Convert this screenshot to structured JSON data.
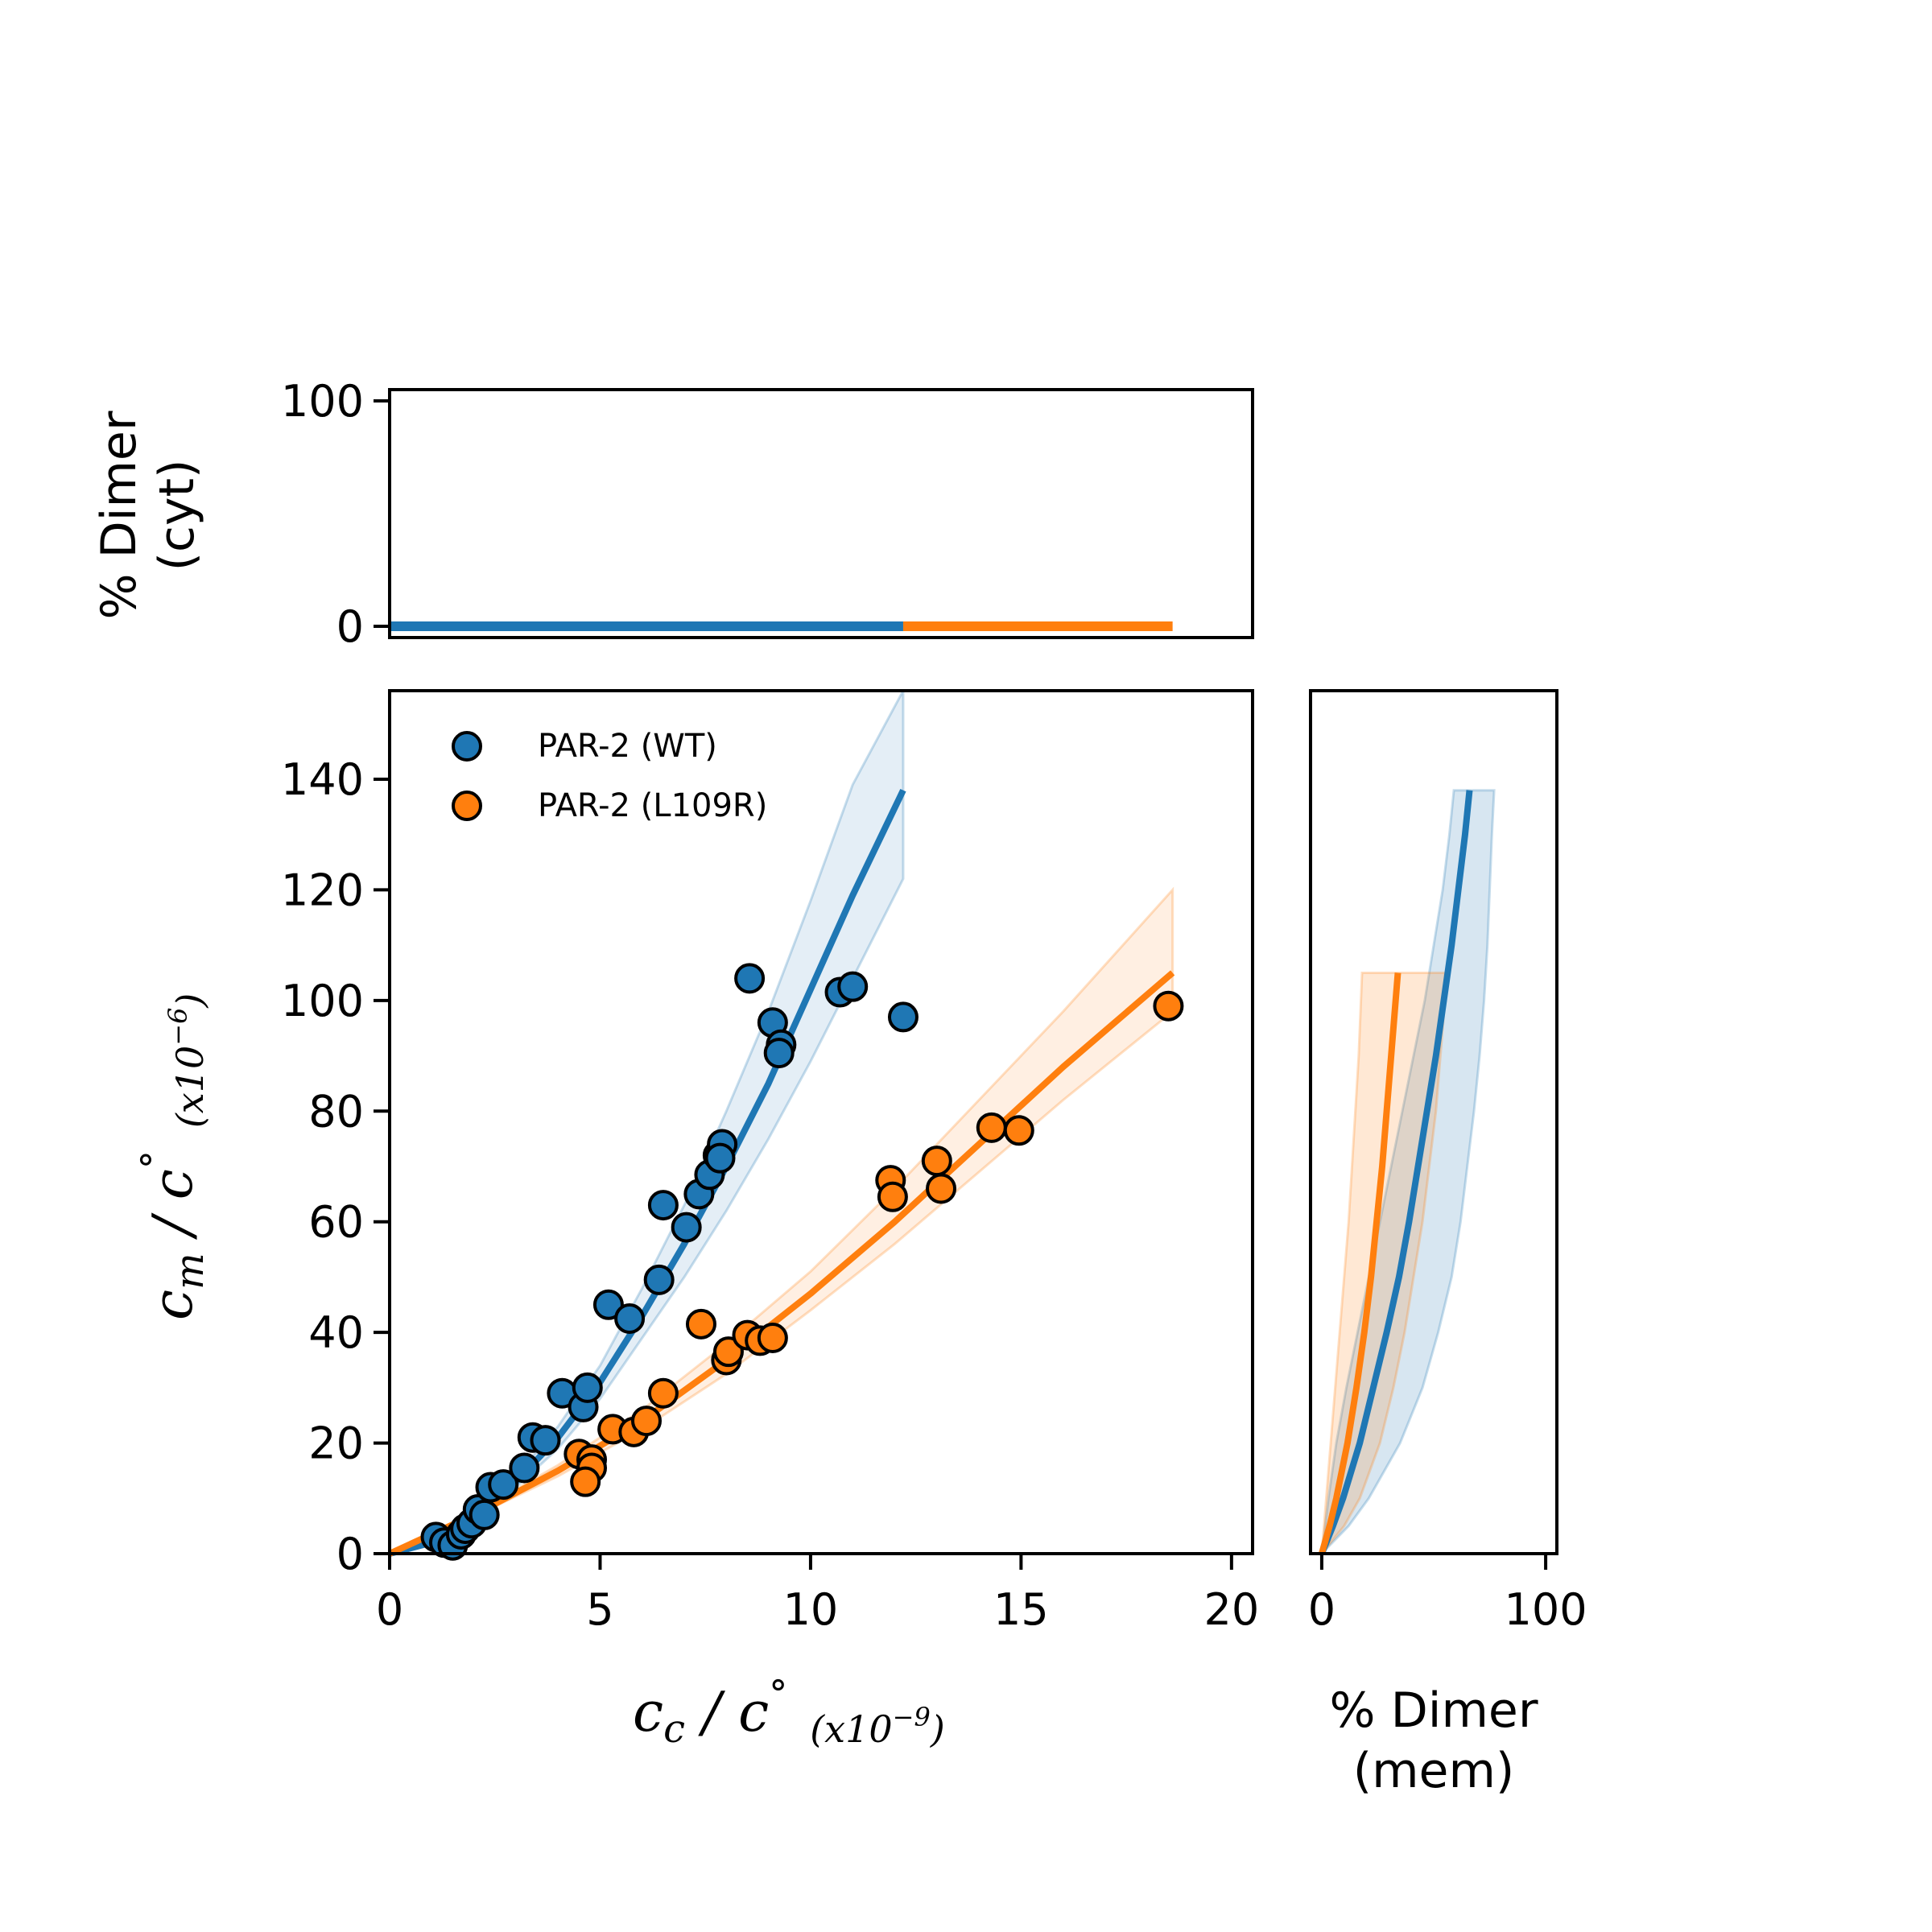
{
  "colors": {
    "wt": "#1f77b4",
    "mut": "#ff7f0e"
  },
  "chart_data": [
    {
      "panel": "top",
      "type": "line",
      "ylabel_line1": "% Dimer",
      "ylabel_line2": "(cyt)",
      "xlim": [
        0,
        20.5
      ],
      "ylim": [
        -5,
        105
      ],
      "yticks": [
        0,
        100
      ],
      "series": [
        {
          "key": "wt",
          "x": [
            0,
            12.2
          ],
          "y": [
            0,
            0
          ]
        },
        {
          "key": "mut",
          "x": [
            12.2,
            18.6
          ],
          "y": [
            0,
            0
          ]
        }
      ]
    },
    {
      "panel": "main",
      "type": "scatter",
      "xlabel_main": "c",
      "xlabel_sub": "c",
      "xlabel_mid": " / c",
      "xlabel_sup": "°",
      "xlabel_scale": "(x10",
      "xlabel_exp": "−9",
      "xlabel_close": ")",
      "ylabel_main": "c",
      "ylabel_sub": "m",
      "ylabel_mid": " / c",
      "ylabel_sup": "°",
      "ylabel_scale": "(x10",
      "ylabel_exp": "−6",
      "ylabel_close": ")",
      "xlim": [
        0,
        20.5
      ],
      "ylim": [
        0,
        156
      ],
      "xticks": [
        0,
        5,
        10,
        15,
        20
      ],
      "yticks": [
        0,
        20,
        40,
        60,
        80,
        100,
        120,
        140
      ],
      "legend_position": "upper-left",
      "series": [
        {
          "key": "wt",
          "name": "PAR-2 (WT)",
          "points": [
            [
              1.1,
              3
            ],
            [
              1.3,
              2
            ],
            [
              1.5,
              1.5
            ],
            [
              1.7,
              3.5
            ],
            [
              1.8,
              4.5
            ],
            [
              1.95,
              5.5
            ],
            [
              2.1,
              8
            ],
            [
              2.25,
              7
            ],
            [
              2.4,
              12
            ],
            [
              2.7,
              12.5
            ],
            [
              3.2,
              15.5
            ],
            [
              3.4,
              21
            ],
            [
              3.7,
              20.5
            ],
            [
              4.1,
              29
            ],
            [
              4.6,
              26.5
            ],
            [
              4.7,
              30
            ],
            [
              5.2,
              45
            ],
            [
              5.7,
              42.5
            ],
            [
              6.4,
              49.5
            ],
            [
              6.5,
              63
            ],
            [
              7.05,
              59
            ],
            [
              7.35,
              65
            ],
            [
              7.6,
              68.5
            ],
            [
              7.8,
              72
            ],
            [
              7.9,
              74
            ],
            [
              7.85,
              71.5
            ],
            [
              8.55,
              104
            ],
            [
              9.1,
              96
            ],
            [
              9.3,
              92
            ],
            [
              9.25,
              90.5
            ],
            [
              10.7,
              101.5
            ],
            [
              11.0,
              102.5
            ],
            [
              12.2,
              97
            ]
          ],
          "fit_x": [
            0,
            1,
            2,
            3,
            4,
            5,
            6,
            7,
            8,
            9,
            10,
            11,
            12.2
          ],
          "fit_y": [
            0,
            2,
            6,
            13,
            21,
            31,
            43,
            56,
            70,
            85,
            102,
            119,
            138
          ],
          "band_upper": [
            0,
            2.1,
            6.5,
            14,
            23,
            34,
            48,
            63,
            80,
            98,
            118,
            139,
            156
          ],
          "band_lower": [
            0,
            1.9,
            5.6,
            12,
            19,
            28,
            39,
            50,
            62,
            75,
            89,
            104,
            122
          ]
        },
        {
          "key": "mut",
          "name": "PAR-2 (L109R)",
          "points": [
            [
              4.5,
              18
            ],
            [
              4.8,
              17
            ],
            [
              4.8,
              15.5
            ],
            [
              4.65,
              13
            ],
            [
              5.3,
              22.5
            ],
            [
              5.8,
              22
            ],
            [
              6.1,
              24
            ],
            [
              6.5,
              29
            ],
            [
              7.4,
              41.5
            ],
            [
              8.0,
              35
            ],
            [
              8.05,
              36.5
            ],
            [
              8.5,
              39.5
            ],
            [
              8.8,
              38.5
            ],
            [
              9.1,
              39
            ],
            [
              11.9,
              67.5
            ],
            [
              11.95,
              64.5
            ],
            [
              13.0,
              71
            ],
            [
              13.1,
              66
            ],
            [
              14.3,
              77
            ],
            [
              14.95,
              76.5
            ],
            [
              18.5,
              99
            ]
          ],
          "fit_x": [
            0,
            2,
            4,
            6,
            8,
            10,
            12,
            14,
            16,
            18.6
          ],
          "fit_y": [
            0,
            7,
            15,
            24,
            35,
            47,
            60,
            74,
            88,
            105
          ],
          "band_upper": [
            0,
            7.3,
            16,
            26,
            38,
            51,
            66,
            82,
            98,
            120
          ],
          "band_lower": [
            0,
            6.7,
            14,
            22.5,
            32.5,
            44,
            56,
            69,
            82,
            98
          ]
        }
      ]
    },
    {
      "panel": "right",
      "type": "line",
      "xlabel_line1": "% Dimer",
      "xlabel_line2": "(mem)",
      "xlim": [
        -5,
        105
      ],
      "ylim": [
        0,
        156
      ],
      "xticks": [
        0,
        100
      ],
      "series": [
        {
          "key": "wt",
          "y": [
            0,
            5,
            10,
            20,
            30,
            40,
            50,
            60,
            70,
            80,
            90,
            100,
            110,
            120,
            130,
            138
          ],
          "x": [
            0,
            5,
            9.5,
            17,
            23,
            29,
            34.5,
            39,
            43,
            47,
            51,
            54.5,
            58,
            61,
            64,
            66
          ],
          "band_lower": [
            0,
            1.5,
            3,
            6.5,
            11,
            16,
            21,
            26,
            31,
            36,
            41,
            46,
            50,
            54,
            57,
            59
          ],
          "band_upper": [
            0,
            12,
            21,
            35,
            45,
            52,
            58,
            62,
            65,
            68,
            70.5,
            72.5,
            74,
            75,
            76,
            77
          ]
        },
        {
          "key": "mut",
          "y": [
            0,
            5,
            10,
            20,
            30,
            40,
            50,
            60,
            70,
            80,
            90,
            100,
            105
          ],
          "x": [
            0,
            3.5,
            6.5,
            11.5,
            15.5,
            19,
            22,
            24.5,
            27,
            29,
            31,
            33,
            34
          ],
          "band_lower": [
            0,
            1,
            2,
            4,
            6,
            8,
            10,
            12,
            13.5,
            15,
            16.5,
            17.5,
            18
          ],
          "band_upper": [
            0,
            10,
            17,
            26,
            32,
            37,
            41,
            45,
            48,
            51,
            53,
            55,
            55
          ]
        }
      ]
    }
  ]
}
